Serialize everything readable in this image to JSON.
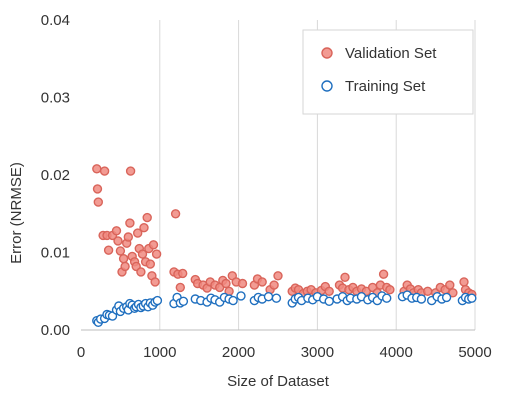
{
  "chart_data": {
    "type": "scatter",
    "title": "",
    "xlabel": "Size of Dataset",
    "ylabel": "Error (NRMSE)",
    "xlim": [
      0,
      5000
    ],
    "ylim": [
      0,
      0.04
    ],
    "x_ticks": [
      0,
      1000,
      2000,
      3000,
      4000,
      5000
    ],
    "y_ticks": [
      0.0,
      0.01,
      0.02,
      0.03,
      0.04
    ],
    "x_tick_labels": [
      "0",
      "1000",
      "2000",
      "3000",
      "4000",
      "5000"
    ],
    "y_tick_labels": [
      "0.00",
      "0.01",
      "0.02",
      "0.03",
      "0.04"
    ],
    "grid": "vertical",
    "legend": "top-right",
    "series": [
      {
        "name": "Validation Set",
        "color": "#f08a80",
        "edge": "#d9645a",
        "filled": true,
        "points": [
          [
            200,
            0.0208
          ],
          [
            210,
            0.0182
          ],
          [
            220,
            0.0165
          ],
          [
            280,
            0.0122
          ],
          [
            300,
            0.0205
          ],
          [
            330,
            0.0122
          ],
          [
            350,
            0.0103
          ],
          [
            400,
            0.0122
          ],
          [
            450,
            0.0128
          ],
          [
            470,
            0.0115
          ],
          [
            500,
            0.0102
          ],
          [
            520,
            0.0075
          ],
          [
            540,
            0.0092
          ],
          [
            560,
            0.0082
          ],
          [
            580,
            0.0112
          ],
          [
            600,
            0.012
          ],
          [
            620,
            0.0138
          ],
          [
            630,
            0.0205
          ],
          [
            650,
            0.0095
          ],
          [
            680,
            0.0088
          ],
          [
            700,
            0.0082
          ],
          [
            720,
            0.0125
          ],
          [
            740,
            0.0105
          ],
          [
            760,
            0.0075
          ],
          [
            780,
            0.0098
          ],
          [
            800,
            0.0132
          ],
          [
            820,
            0.0088
          ],
          [
            840,
            0.0145
          ],
          [
            860,
            0.0105
          ],
          [
            880,
            0.0085
          ],
          [
            900,
            0.007
          ],
          [
            920,
            0.011
          ],
          [
            940,
            0.0062
          ],
          [
            960,
            0.0098
          ],
          [
            1180,
            0.0075
          ],
          [
            1200,
            0.015
          ],
          [
            1230,
            0.0072
          ],
          [
            1260,
            0.0055
          ],
          [
            1290,
            0.0073
          ],
          [
            1450,
            0.0065
          ],
          [
            1480,
            0.006
          ],
          [
            1550,
            0.0058
          ],
          [
            1600,
            0.0054
          ],
          [
            1640,
            0.0062
          ],
          [
            1700,
            0.0058
          ],
          [
            1760,
            0.0055
          ],
          [
            1800,
            0.0064
          ],
          [
            1840,
            0.006
          ],
          [
            1880,
            0.005
          ],
          [
            1920,
            0.007
          ],
          [
            1970,
            0.0062
          ],
          [
            2050,
            0.006
          ],
          [
            2200,
            0.0058
          ],
          [
            2240,
            0.0066
          ],
          [
            2300,
            0.0062
          ],
          [
            2400,
            0.0052
          ],
          [
            2450,
            0.0058
          ],
          [
            2500,
            0.007
          ],
          [
            2680,
            0.005
          ],
          [
            2720,
            0.0054
          ],
          [
            2760,
            0.0052
          ],
          [
            2820,
            0.0047
          ],
          [
            2870,
            0.005
          ],
          [
            2920,
            0.0052
          ],
          [
            2980,
            0.0048
          ],
          [
            3050,
            0.0051
          ],
          [
            3100,
            0.0056
          ],
          [
            3150,
            0.005
          ],
          [
            3280,
            0.0058
          ],
          [
            3320,
            0.0054
          ],
          [
            3350,
            0.0068
          ],
          [
            3400,
            0.0052
          ],
          [
            3450,
            0.0055
          ],
          [
            3500,
            0.005
          ],
          [
            3560,
            0.0053
          ],
          [
            3620,
            0.005
          ],
          [
            3700,
            0.0055
          ],
          [
            3760,
            0.0048
          ],
          [
            3800,
            0.0058
          ],
          [
            3840,
            0.0072
          ],
          [
            3880,
            0.0055
          ],
          [
            3920,
            0.0052
          ],
          [
            4100,
            0.005
          ],
          [
            4140,
            0.0058
          ],
          [
            4180,
            0.0053
          ],
          [
            4220,
            0.0048
          ],
          [
            4280,
            0.0052
          ],
          [
            4320,
            0.0048
          ],
          [
            4400,
            0.005
          ],
          [
            4500,
            0.0048
          ],
          [
            4560,
            0.0055
          ],
          [
            4620,
            0.0052
          ],
          [
            4680,
            0.0058
          ],
          [
            4720,
            0.0048
          ],
          [
            4860,
            0.0062
          ],
          [
            4880,
            0.0052
          ],
          [
            4920,
            0.0048
          ],
          [
            4960,
            0.0046
          ]
        ]
      },
      {
        "name": "Training Set",
        "color": "#ffffff",
        "edge": "#1f6fbf",
        "filled": false,
        "points": [
          [
            200,
            0.0012
          ],
          [
            220,
            0.001
          ],
          [
            250,
            0.0014
          ],
          [
            300,
            0.0015
          ],
          [
            330,
            0.002
          ],
          [
            360,
            0.0019
          ],
          [
            400,
            0.0018
          ],
          [
            450,
            0.0026
          ],
          [
            480,
            0.0031
          ],
          [
            500,
            0.0024
          ],
          [
            540,
            0.0028
          ],
          [
            580,
            0.003
          ],
          [
            600,
            0.0026
          ],
          [
            620,
            0.0034
          ],
          [
            650,
            0.0032
          ],
          [
            680,
            0.0028
          ],
          [
            700,
            0.003
          ],
          [
            730,
            0.0033
          ],
          [
            760,
            0.0029
          ],
          [
            790,
            0.0031
          ],
          [
            820,
            0.0034
          ],
          [
            850,
            0.003
          ],
          [
            880,
            0.0035
          ],
          [
            910,
            0.0032
          ],
          [
            940,
            0.0036
          ],
          [
            970,
            0.0038
          ],
          [
            1180,
            0.0034
          ],
          [
            1220,
            0.0042
          ],
          [
            1260,
            0.0035
          ],
          [
            1300,
            0.0037
          ],
          [
            1450,
            0.004
          ],
          [
            1520,
            0.0038
          ],
          [
            1600,
            0.0036
          ],
          [
            1650,
            0.0041
          ],
          [
            1700,
            0.0039
          ],
          [
            1760,
            0.0036
          ],
          [
            1820,
            0.0042
          ],
          [
            1880,
            0.004
          ],
          [
            1930,
            0.0038
          ],
          [
            2030,
            0.0044
          ],
          [
            2200,
            0.0038
          ],
          [
            2250,
            0.0042
          ],
          [
            2300,
            0.004
          ],
          [
            2380,
            0.0043
          ],
          [
            2480,
            0.0041
          ],
          [
            2680,
            0.0035
          ],
          [
            2720,
            0.004
          ],
          [
            2760,
            0.0042
          ],
          [
            2800,
            0.0038
          ],
          [
            2880,
            0.0041
          ],
          [
            2940,
            0.0039
          ],
          [
            3000,
            0.0043
          ],
          [
            3080,
            0.004
          ],
          [
            3150,
            0.0037
          ],
          [
            3250,
            0.004
          ],
          [
            3320,
            0.0043
          ],
          [
            3380,
            0.0038
          ],
          [
            3420,
            0.0041
          ],
          [
            3500,
            0.004
          ],
          [
            3560,
            0.0043
          ],
          [
            3640,
            0.0039
          ],
          [
            3700,
            0.0042
          ],
          [
            3760,
            0.0038
          ],
          [
            3820,
            0.0044
          ],
          [
            3880,
            0.0041
          ],
          [
            4080,
            0.0043
          ],
          [
            4140,
            0.0045
          ],
          [
            4200,
            0.0041
          ],
          [
            4260,
            0.0042
          ],
          [
            4320,
            0.004
          ],
          [
            4450,
            0.0038
          ],
          [
            4520,
            0.0043
          ],
          [
            4580,
            0.004
          ],
          [
            4640,
            0.0042
          ],
          [
            4840,
            0.0038
          ],
          [
            4880,
            0.0042
          ],
          [
            4920,
            0.004
          ],
          [
            4960,
            0.0041
          ]
        ]
      }
    ]
  }
}
